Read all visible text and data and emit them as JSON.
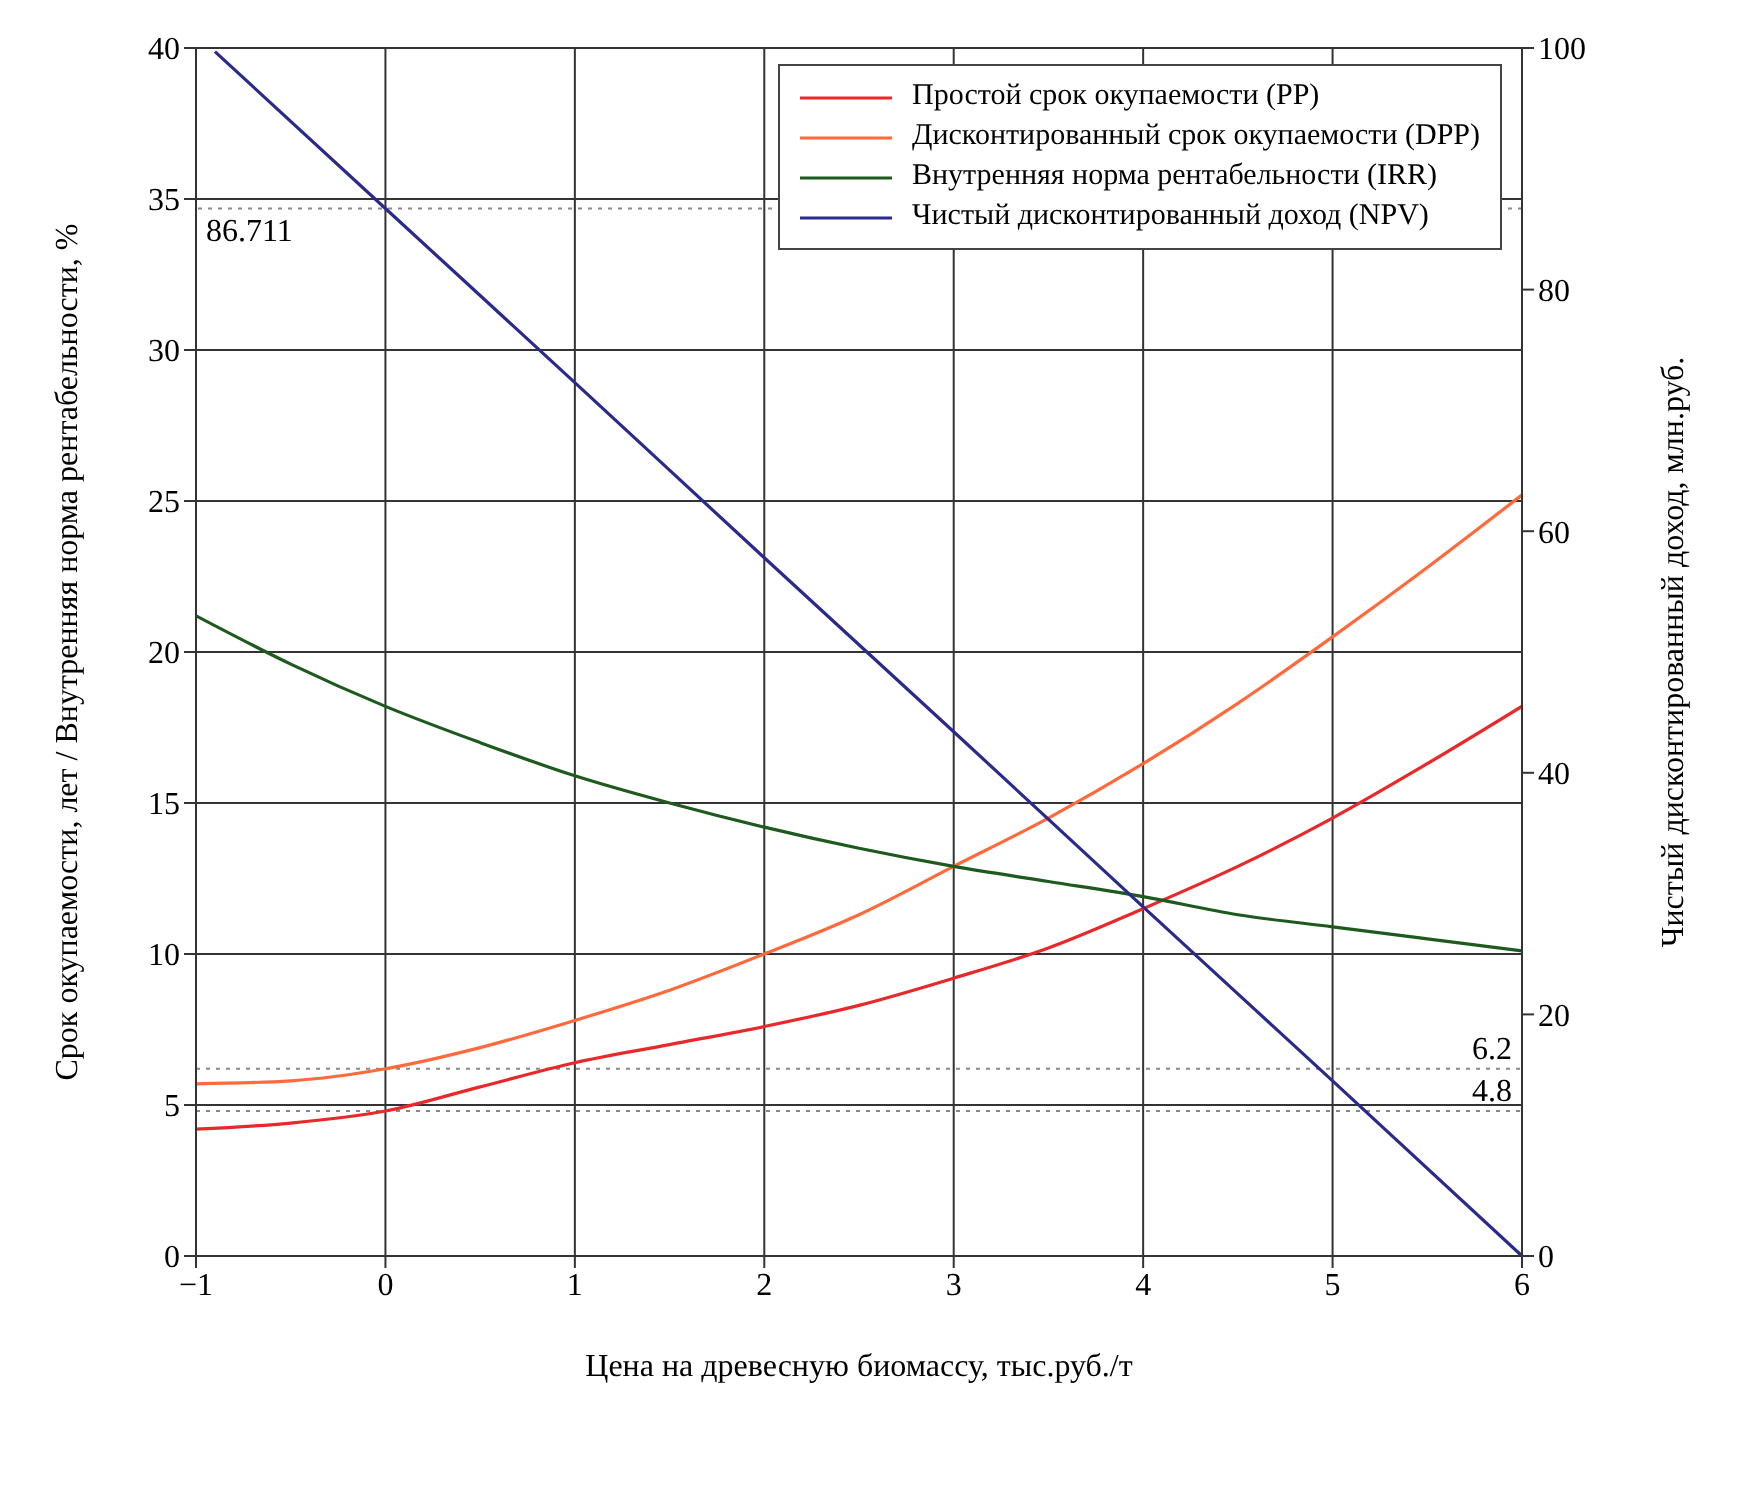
{
  "chart_data": {
    "type": "line",
    "xlabel": "Цена на древесную биомассу, тыс.руб./т",
    "ylabel": "Срок окупаемости, лет / Внутренняя норма рентабельности, %",
    "y2label": "Чистый дисконтированный доход, млн.руб.",
    "x": [
      -1,
      -0.5,
      0,
      0.5,
      1,
      1.5,
      2,
      2.5,
      3,
      3.5,
      4,
      4.5,
      5,
      5.5,
      6
    ],
    "series": [
      {
        "name": "Простой срок окупаемости (PP)",
        "color": "#e8282a",
        "values": [
          4.2,
          4.4,
          4.8,
          5.6,
          6.4,
          7.0,
          7.6,
          8.3,
          9.2,
          10.2,
          11.5,
          12.9,
          14.5,
          16.3,
          18.2
        ]
      },
      {
        "name": "Дисконтированный срок окупаемости (DPP)",
        "color": "#ff6a3d",
        "values": [
          5.7,
          5.8,
          6.2,
          6.9,
          7.8,
          8.8,
          10.0,
          11.3,
          12.9,
          14.5,
          16.3,
          18.3,
          20.5,
          22.8,
          25.2
        ]
      },
      {
        "name": "Внутренняя норма рентабельности (IRR)",
        "color": "#1e5a1e",
        "values": [
          21.2,
          19.6,
          18.2,
          17.0,
          15.9,
          15.0,
          14.2,
          13.5,
          12.9,
          12.4,
          11.9,
          11.3,
          10.9,
          10.5,
          10.1
        ]
      },
      {
        "name": "Чистый дисконтированный доход (NPV)",
        "color": "#2a2a8a",
        "axis": "y2",
        "x": [
          -0.9,
          0,
          1,
          2,
          3,
          4,
          5,
          6
        ],
        "values": [
          99.7,
          86.711,
          72.3,
          57.8,
          43.4,
          28.9,
          14.5,
          0
        ]
      }
    ],
    "xlim": [
      -1,
      6
    ],
    "xticks": [
      {
        "value": -1,
        "label": "−1"
      },
      0,
      1,
      2,
      3,
      4,
      5,
      6
    ],
    "ylim": [
      0,
      40
    ],
    "yticks": [
      0,
      5,
      10,
      15,
      20,
      25,
      30,
      35,
      40
    ],
    "y2lim": [
      0,
      100
    ],
    "y2ticks": [
      0,
      20,
      40,
      60,
      80,
      100
    ],
    "ref_lines": [
      {
        "axis": "y2",
        "value": 86.711,
        "label": "86.711",
        "color": "#888888",
        "line_style": "dotted"
      },
      {
        "axis": "y",
        "value": 6.2,
        "label": "6.2",
        "color": "#888888",
        "line_style": "dotted"
      },
      {
        "axis": "y",
        "value": 4.8,
        "label": "4.8",
        "color": "#888888",
        "line_style": "dotted"
      }
    ],
    "grid": true,
    "legend": "top right",
    "marker": "none",
    "line_style": "solid"
  }
}
